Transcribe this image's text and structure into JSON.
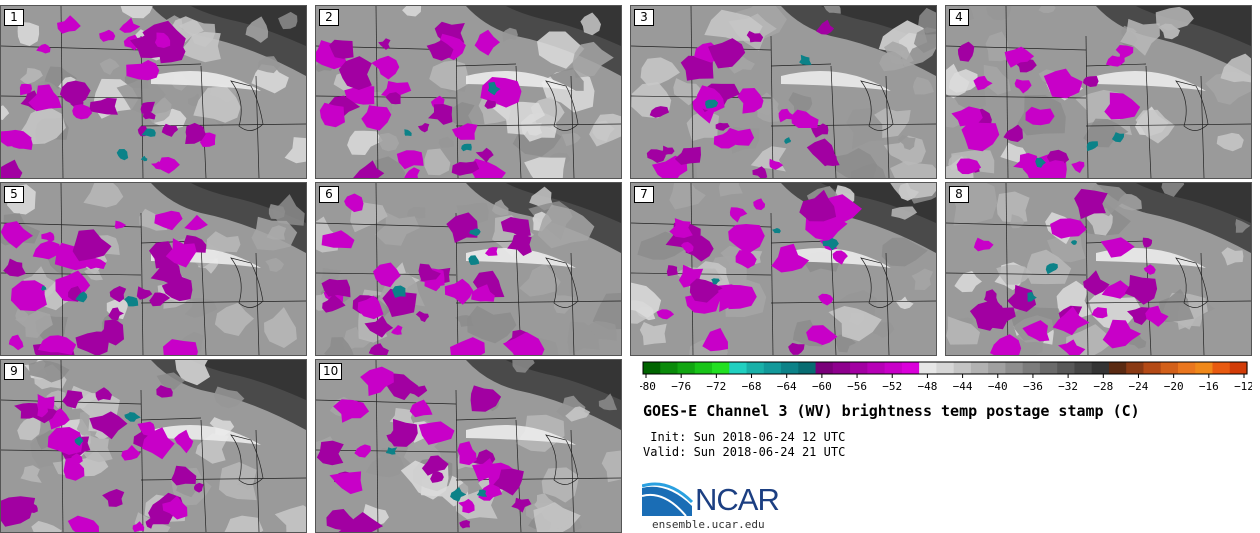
{
  "panels": [
    {
      "label": "1"
    },
    {
      "label": "2"
    },
    {
      "label": "3"
    },
    {
      "label": "4"
    },
    {
      "label": "5"
    },
    {
      "label": "6"
    },
    {
      "label": "7"
    },
    {
      "label": "8"
    },
    {
      "label": "9"
    },
    {
      "label": "10"
    }
  ],
  "legend": {
    "tick_labels": [
      "-80",
      "-76",
      "-72",
      "-68",
      "-64",
      "-60",
      "-56",
      "-52",
      "-48",
      "-44",
      "-40",
      "-36",
      "-32",
      "-28",
      "-24",
      "-20",
      "-16",
      "-12"
    ],
    "colors": [
      "#006400",
      "#0a8a0a",
      "#11a511",
      "#18c418",
      "#22e022",
      "#20d0c0",
      "#19b0a8",
      "#12999a",
      "#0c8288",
      "#086c72",
      "#7a007a",
      "#8e008e",
      "#a200a2",
      "#b600b6",
      "#c800c8",
      "#da00da",
      "#e6e6e6",
      "#d6d6d6",
      "#c4c4c4",
      "#b2b2b2",
      "#a0a0a0",
      "#8e8e8e",
      "#7c7c7c",
      "#6a6a6a",
      "#585858",
      "#464646",
      "#343434",
      "#5a2a12",
      "#8a3a14",
      "#b44a16",
      "#d2601a",
      "#ea761e",
      "#f0881a",
      "#e85a10",
      "#d23c08"
    ]
  },
  "title": "GOES-E Channel 3 (WV) brightness temp postage stamp (C)",
  "init": " Init: Sun 2018-06-24 12 UTC",
  "valid": "Valid: Sun 2018-06-24 21 UTC",
  "logo": {
    "name": "NCAR",
    "url": "ensemble.ucar.edu"
  }
}
